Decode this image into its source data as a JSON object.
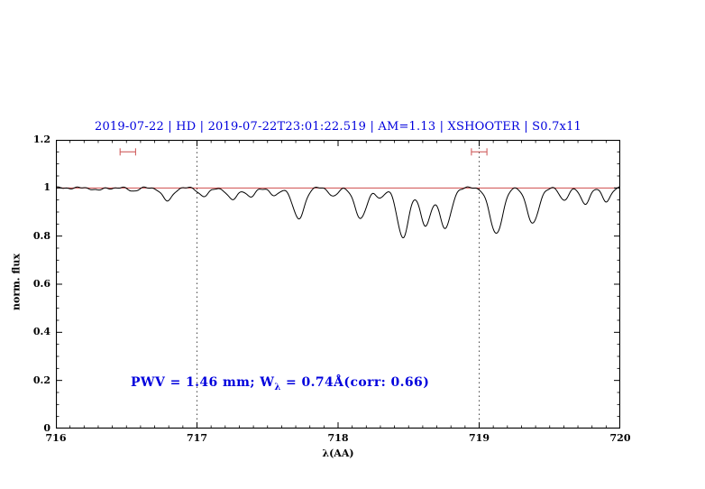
{
  "header": {
    "title": "2019-07-22 | HD | 2019-07-22T23:01:22.519 | AM=1.13 | XSHOOTER | S0.7x11"
  },
  "annotation": {
    "pre": "PWV = 1.46 mm; W",
    "sub": "λ",
    "post": " = 0.74Å(corr: 0.66)",
    "full": "PWV = 1.46 mm; W_λ = 0.74Å(corr: 0.66)"
  },
  "colors": {
    "title": "#0000dd",
    "annotation": "#0000dd",
    "continuum": "#c83232",
    "marker": "#d06060",
    "spectrum": "#000000",
    "vline": "#333333",
    "axis": "#000000"
  },
  "chart_data": {
    "type": "line",
    "title": "2019-07-22 | HD | 2019-07-22T23:01:22.519 | AM=1.13 | XSHOOTER | S0.7x11",
    "xlabel": "λ(AA)",
    "ylabel": "norm. flux",
    "xlim": [
      716,
      720
    ],
    "ylim": [
      0,
      1.2
    ],
    "xticks": [
      716,
      717,
      718,
      719,
      720
    ],
    "xtick_labels": [
      "716",
      "717",
      "718",
      "719",
      "720"
    ],
    "yticks": [
      0,
      0.2,
      0.4,
      0.6,
      0.8,
      1,
      1.2
    ],
    "ytick_labels": [
      "0",
      "0.2",
      "0.4",
      "0.6",
      "0.8",
      "1",
      "1.2"
    ],
    "x_minor_step": 0.1,
    "y_minor_step": 0.05,
    "grid": false,
    "vlines_dotted": [
      717,
      719
    ],
    "continuum_level": 1.0,
    "annotation_text": "PWV = 1.46 mm; W_λ = 0.74Å(corr: 0.66)",
    "range_markers": [
      {
        "x_center": 716.51,
        "half_width": 0.055,
        "y": 1.15
      },
      {
        "x_center": 719.0,
        "half_width": 0.055,
        "y": 1.15
      }
    ],
    "series": [
      {
        "name": "normalized telluric spectrum",
        "model": "continuum minus gaussian absorption lines",
        "absorption_lines": [
          {
            "center": 716.3,
            "depth": 0.01,
            "sigma": 0.03
          },
          {
            "center": 716.55,
            "depth": 0.012,
            "sigma": 0.03
          },
          {
            "center": 716.79,
            "depth": 0.055,
            "sigma": 0.035
          },
          {
            "center": 717.05,
            "depth": 0.035,
            "sigma": 0.035
          },
          {
            "center": 717.25,
            "depth": 0.05,
            "sigma": 0.035
          },
          {
            "center": 717.38,
            "depth": 0.04,
            "sigma": 0.03
          },
          {
            "center": 717.55,
            "depth": 0.035,
            "sigma": 0.03
          },
          {
            "center": 717.72,
            "depth": 0.13,
            "sigma": 0.04
          },
          {
            "center": 717.97,
            "depth": 0.035,
            "sigma": 0.03
          },
          {
            "center": 718.16,
            "depth": 0.13,
            "sigma": 0.04
          },
          {
            "center": 718.3,
            "depth": 0.045,
            "sigma": 0.03
          },
          {
            "center": 718.46,
            "depth": 0.21,
            "sigma": 0.04
          },
          {
            "center": 718.62,
            "depth": 0.16,
            "sigma": 0.038
          },
          {
            "center": 718.76,
            "depth": 0.17,
            "sigma": 0.04
          },
          {
            "center": 719.12,
            "depth": 0.19,
            "sigma": 0.045
          },
          {
            "center": 719.38,
            "depth": 0.15,
            "sigma": 0.04
          },
          {
            "center": 719.6,
            "depth": 0.05,
            "sigma": 0.03
          },
          {
            "center": 719.75,
            "depth": 0.065,
            "sigma": 0.032
          },
          {
            "center": 719.9,
            "depth": 0.055,
            "sigma": 0.03
          }
        ]
      }
    ]
  }
}
